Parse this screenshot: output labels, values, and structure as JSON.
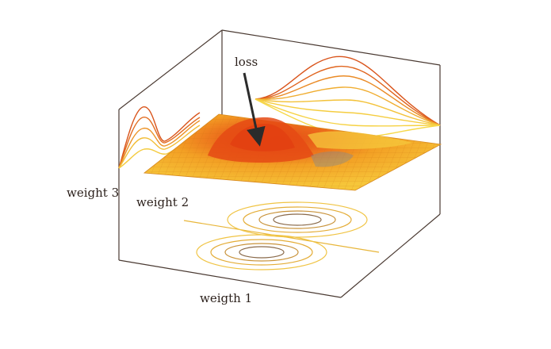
{
  "labels": {
    "loss": "loss",
    "weight3": "weight 3",
    "weight2": "weight 2",
    "weight1": "weigth 1"
  },
  "colors": {
    "background": "#ffffff",
    "axes": "#4a3a32",
    "surface_low": "#f2c23a",
    "surface_mid": "#f09a20",
    "surface_high": "#e8541a",
    "projection_dark": "#d9541b",
    "projection_light": "#f2c53b",
    "contour_dark": "#8a6a4a",
    "contour_light": "#e8b63a",
    "arrow": "#2b2b2b"
  }
}
